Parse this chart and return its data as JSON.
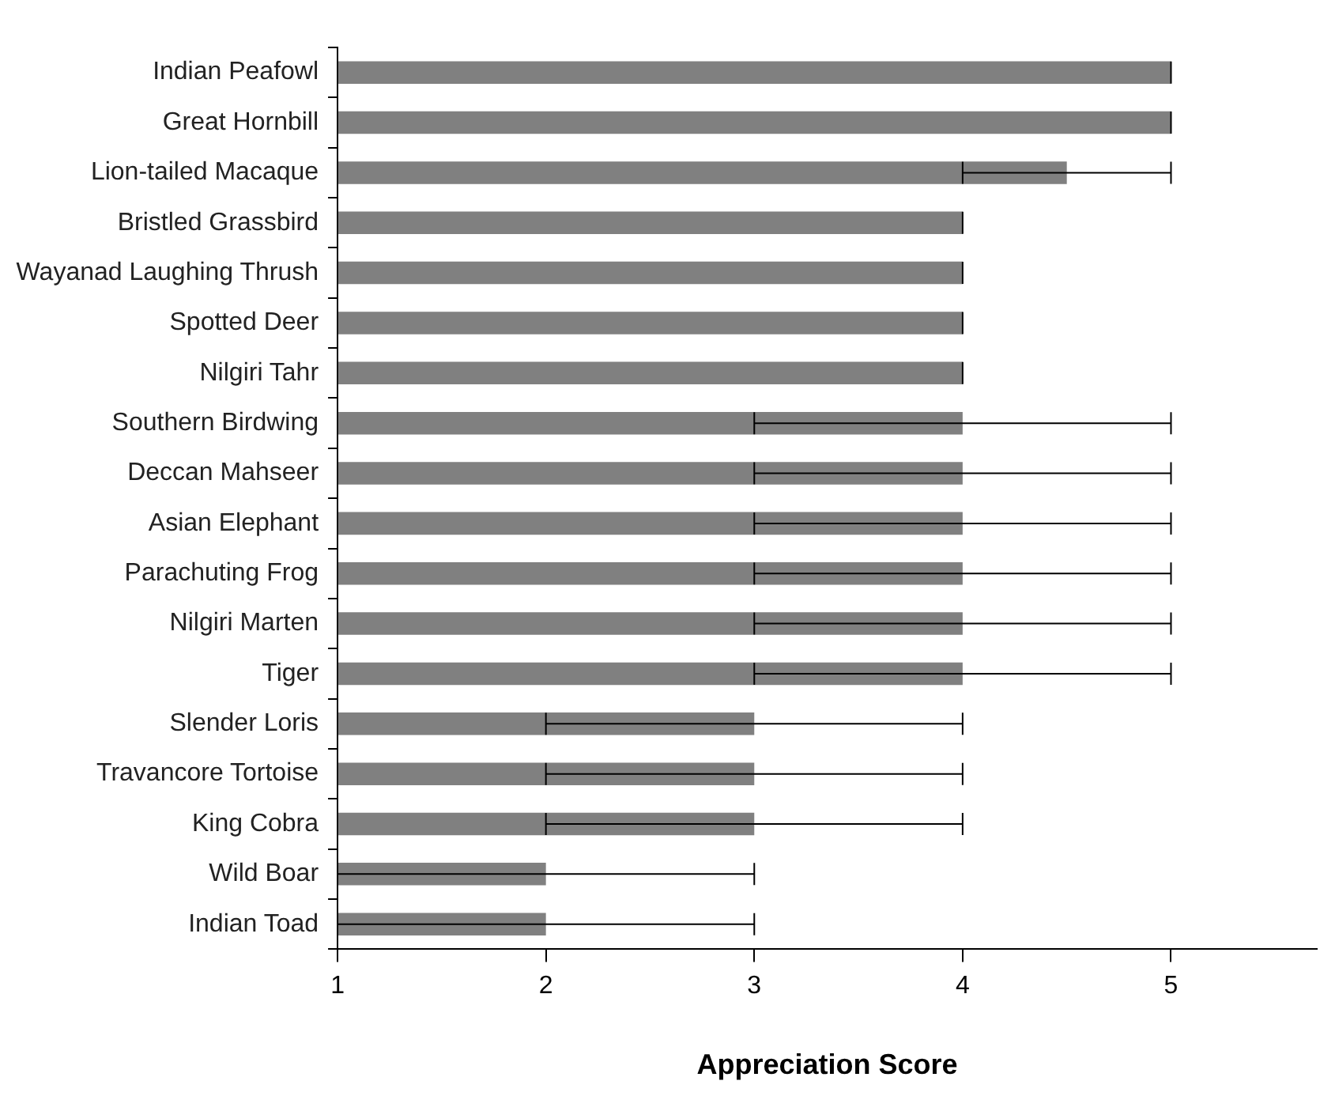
{
  "chart_data": {
    "type": "bar",
    "orientation": "horizontal",
    "xlabel": "Appreciation Score",
    "categories": [
      "Indian Peafowl",
      "Great Hornbill",
      "Lion-tailed Macaque",
      "Bristled Grassbird",
      "Wayanad Laughing Thrush",
      "Spotted Deer",
      "Nilgiri Tahr",
      "Southern Birdwing",
      "Deccan Mahseer",
      "Asian Elephant",
      "Parachuting Frog",
      "Nilgiri Marten",
      "Tiger",
      "Slender Loris",
      "Travancore Tortoise",
      "King Cobra",
      "Wild Boar",
      "Indian Toad"
    ],
    "values": [
      5,
      5,
      4.5,
      4,
      4,
      4,
      4,
      4,
      4,
      4,
      4,
      4,
      4,
      3,
      3,
      3,
      2,
      2
    ],
    "errors": [
      0,
      0,
      0.5,
      0,
      0,
      0,
      0,
      1,
      1,
      1,
      1,
      1,
      1,
      1,
      1,
      1,
      1,
      1
    ],
    "color": "#808080",
    "xlim": [
      1,
      5.7
    ],
    "xticks": [
      1,
      2,
      3,
      4,
      5
    ],
    "grid": false,
    "legend": false
  }
}
